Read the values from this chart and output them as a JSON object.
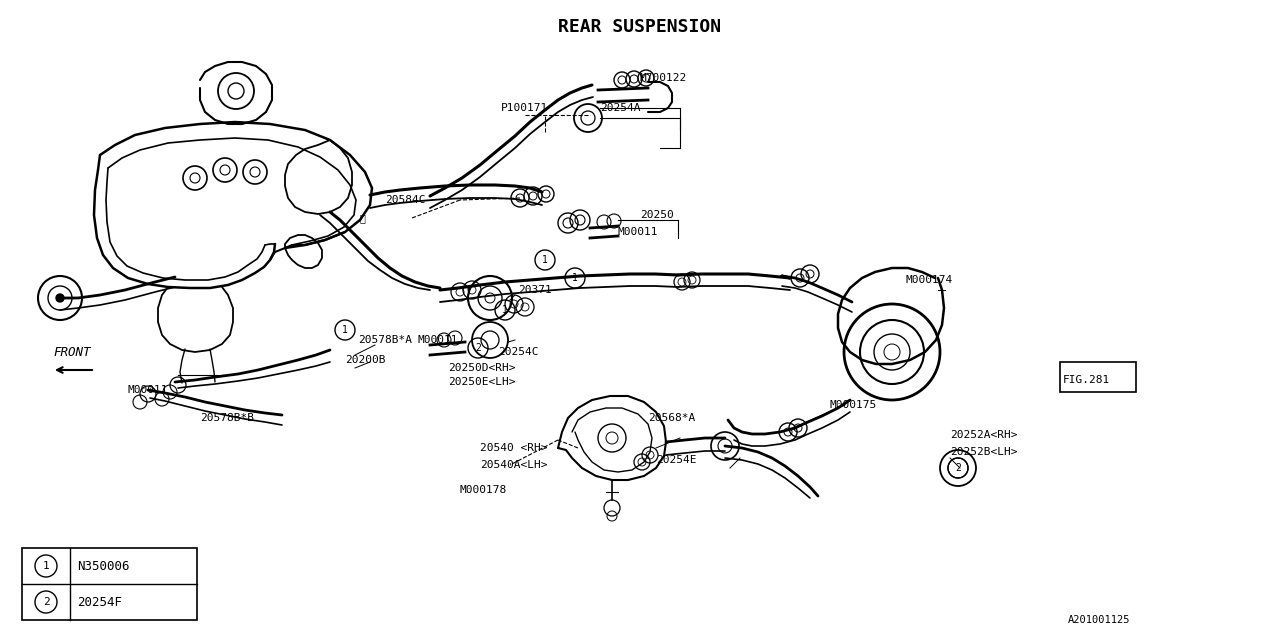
{
  "title": "REAR SUSPENSION",
  "bg_color": "#ffffff",
  "line_color": "#000000",
  "text_color": "#000000",
  "fig_width": 12.8,
  "fig_height": 6.4,
  "dpi": 100,
  "legend_items": [
    {
      "symbol": "1",
      "text": "N350006"
    },
    {
      "symbol": "2",
      "text": "20254F"
    }
  ]
}
